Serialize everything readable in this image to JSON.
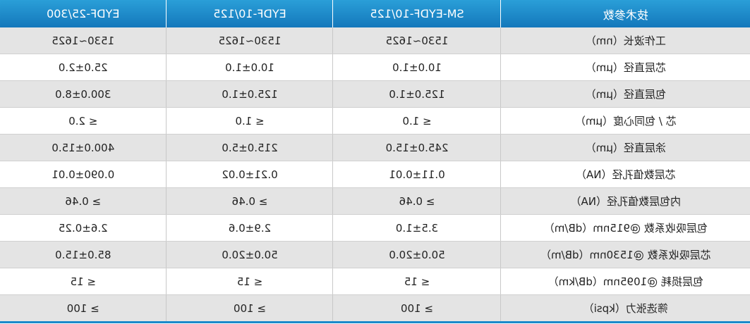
{
  "table": {
    "header": [
      "技术参数",
      "SM-EYDF-10/125",
      "EYDF-10/125",
      "EYDF-25/300"
    ],
    "rows": [
      [
        "工作波长（nm）",
        "1530~1625",
        "1530~1625",
        "1530~1625"
      ],
      [
        "芯层直径（μm）",
        "10.0±1.0",
        "10.0±1.0",
        "25.0±2.0"
      ],
      [
        "包层直径（μm）",
        "125.0±1.0",
        "125.0±1.0",
        "300.0±8.0"
      ],
      [
        "芯 / 包同心度（μm）",
        "≤ 1.0",
        "≤ 1.0",
        "≤ 2.0"
      ],
      [
        "涂层直径（μm）",
        "245.0±15.0",
        "215.0±5.0",
        "400.0±15.0"
      ],
      [
        "芯层数值孔径（NA）",
        "0.11±0.01",
        "0.21±0.02",
        "0.090±0.01"
      ],
      [
        "内包层数值孔径（NA）",
        "≥ 0.46",
        "≥ 0.46",
        "≥ 0.46"
      ],
      [
        "包层吸收系数 @915nm（dB/m）",
        "3.5±1.0",
        "2.9±0.6",
        "2.6±0.25"
      ],
      [
        "芯层吸收系数 @1530nm（dB/m）",
        "50.0±20.0",
        "50.0±20.0",
        "85.0±15.0"
      ],
      [
        "包层损耗 @1095nm（dB/km）",
        "≤ 15",
        "≤ 15",
        "≤ 15"
      ],
      [
        "筛选张力（kpsi）",
        "≥ 100",
        "≥ 100",
        "≥ 100"
      ]
    ]
  }
}
